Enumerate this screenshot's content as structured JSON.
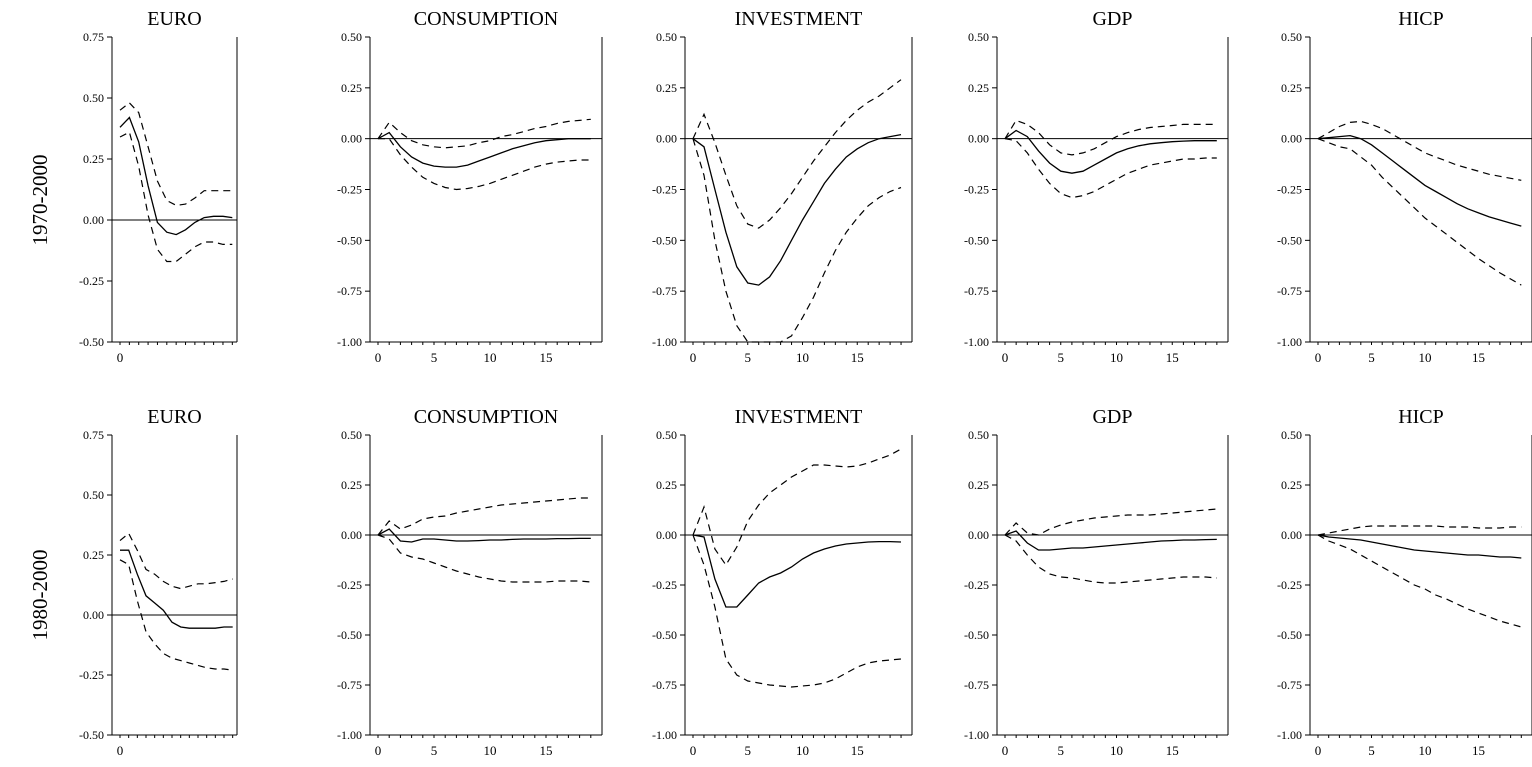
{
  "row_labels": [
    "1970-2000",
    "1980-2000"
  ],
  "chart_data": [
    {
      "type": "line",
      "title": "EURO",
      "ylim": [
        -0.5,
        0.75
      ],
      "yticks": [
        "0.75",
        "0.50",
        "0.25",
        "0.00",
        "-0.25",
        "-0.50"
      ],
      "xticks": [
        "0"
      ],
      "series": [
        {
          "role": "response",
          "values": [
            0.38,
            0.42,
            0.32,
            0.14,
            -0.01,
            -0.05,
            -0.06,
            -0.04,
            -0.01,
            0.01,
            0.015,
            0.015,
            0.01
          ]
        },
        {
          "role": "upper",
          "values": [
            0.45,
            0.48,
            0.44,
            0.3,
            0.16,
            0.08,
            0.06,
            0.065,
            0.09,
            0.12,
            0.12,
            0.12,
            0.12
          ]
        },
        {
          "role": "lower",
          "values": [
            0.34,
            0.36,
            0.22,
            0.02,
            -0.12,
            -0.17,
            -0.17,
            -0.14,
            -0.11,
            -0.09,
            -0.09,
            -0.1,
            -0.1
          ]
        }
      ]
    },
    {
      "type": "line",
      "title": "CONSUMPTION",
      "ylim": [
        -1.0,
        0.5
      ],
      "yticks": [
        "0.50",
        "0.25",
        "0.00",
        "-0.25",
        "-0.50",
        "-0.75",
        "-1.00"
      ],
      "xticks": [
        "0",
        "5",
        "10",
        "15"
      ],
      "series": [
        {
          "role": "response",
          "values": [
            0,
            0.03,
            -0.04,
            -0.09,
            -0.12,
            -0.135,
            -0.14,
            -0.14,
            -0.13,
            -0.11,
            -0.09,
            -0.07,
            -0.05,
            -0.035,
            -0.02,
            -0.01,
            -0.005,
            0,
            0,
            0
          ]
        },
        {
          "role": "upper",
          "values": [
            0,
            0.08,
            0.03,
            -0.01,
            -0.03,
            -0.04,
            -0.045,
            -0.04,
            -0.035,
            -0.02,
            -0.01,
            0.01,
            0.02,
            0.035,
            0.05,
            0.06,
            0.075,
            0.085,
            0.09,
            0.095
          ]
        },
        {
          "role": "lower",
          "values": [
            0,
            0,
            -0.08,
            -0.14,
            -0.19,
            -0.22,
            -0.24,
            -0.25,
            -0.245,
            -0.235,
            -0.22,
            -0.2,
            -0.18,
            -0.16,
            -0.14,
            -0.125,
            -0.115,
            -0.11,
            -0.105,
            -0.105
          ]
        }
      ]
    },
    {
      "type": "line",
      "title": "INVESTMENT",
      "ylim": [
        -1.0,
        0.5
      ],
      "yticks": [
        "0.50",
        "0.25",
        "0.00",
        "-0.25",
        "-0.50",
        "-0.75",
        "-1.00"
      ],
      "xticks": [
        "0",
        "5",
        "10",
        "15"
      ],
      "series": [
        {
          "role": "response",
          "values": [
            0,
            -0.04,
            -0.25,
            -0.46,
            -0.63,
            -0.71,
            -0.72,
            -0.68,
            -0.6,
            -0.5,
            -0.4,
            -0.31,
            -0.22,
            -0.15,
            -0.09,
            -0.05,
            -0.02,
            0,
            0.01,
            0.02
          ]
        },
        {
          "role": "upper",
          "values": [
            0,
            0.12,
            -0.02,
            -0.18,
            -0.33,
            -0.42,
            -0.44,
            -0.4,
            -0.34,
            -0.27,
            -0.19,
            -0.11,
            -0.04,
            0.03,
            0.09,
            0.14,
            0.18,
            0.21,
            0.25,
            0.29
          ]
        },
        {
          "role": "lower",
          "values": [
            0,
            -0.18,
            -0.5,
            -0.75,
            -0.92,
            -1.0,
            -1.0,
            -1.0,
            -1.0,
            -0.97,
            -0.88,
            -0.78,
            -0.66,
            -0.55,
            -0.46,
            -0.39,
            -0.33,
            -0.29,
            -0.26,
            -0.24
          ]
        }
      ]
    },
    {
      "type": "line",
      "title": "GDP",
      "ylim": [
        -1.0,
        0.5
      ],
      "yticks": [
        "0.50",
        "0.25",
        "0.00",
        "-0.25",
        "-0.50",
        "-0.75",
        "-1.00"
      ],
      "xticks": [
        "0",
        "5",
        "10",
        "15"
      ],
      "series": [
        {
          "role": "response",
          "values": [
            0,
            0.04,
            0.01,
            -0.06,
            -0.12,
            -0.16,
            -0.17,
            -0.16,
            -0.13,
            -0.1,
            -0.07,
            -0.05,
            -0.035,
            -0.025,
            -0.02,
            -0.015,
            -0.012,
            -0.01,
            -0.01,
            -0.01
          ]
        },
        {
          "role": "upper",
          "values": [
            0,
            0.09,
            0.07,
            0.03,
            -0.03,
            -0.07,
            -0.08,
            -0.07,
            -0.05,
            -0.02,
            0.01,
            0.03,
            0.045,
            0.055,
            0.06,
            0.065,
            0.07,
            0.07,
            0.07,
            0.07
          ]
        },
        {
          "role": "lower",
          "values": [
            0,
            -0.01,
            -0.07,
            -0.15,
            -0.22,
            -0.27,
            -0.29,
            -0.28,
            -0.26,
            -0.23,
            -0.2,
            -0.17,
            -0.15,
            -0.13,
            -0.12,
            -0.11,
            -0.1,
            -0.1,
            -0.095,
            -0.095
          ]
        }
      ]
    },
    {
      "type": "line",
      "title": "HICP",
      "ylim": [
        -1.0,
        0.5
      ],
      "yticks": [
        "0.50",
        "0.25",
        "0.00",
        "-0.25",
        "-0.50",
        "-0.75",
        "-1.00"
      ],
      "xticks": [
        "0",
        "5",
        "10",
        "15"
      ],
      "series": [
        {
          "role": "response",
          "values": [
            0,
            0.005,
            0.01,
            0.015,
            0.0,
            -0.03,
            -0.07,
            -0.11,
            -0.15,
            -0.19,
            -0.23,
            -0.26,
            -0.29,
            -0.32,
            -0.345,
            -0.365,
            -0.385,
            -0.4,
            -0.415,
            -0.43
          ]
        },
        {
          "role": "upper",
          "values": [
            0,
            0.03,
            0.06,
            0.08,
            0.085,
            0.07,
            0.05,
            0.02,
            -0.01,
            -0.04,
            -0.07,
            -0.09,
            -0.11,
            -0.13,
            -0.145,
            -0.16,
            -0.175,
            -0.185,
            -0.195,
            -0.205
          ]
        },
        {
          "role": "lower",
          "values": [
            0,
            -0.02,
            -0.04,
            -0.05,
            -0.09,
            -0.13,
            -0.19,
            -0.24,
            -0.29,
            -0.34,
            -0.39,
            -0.43,
            -0.47,
            -0.51,
            -0.55,
            -0.59,
            -0.625,
            -0.66,
            -0.69,
            -0.72
          ]
        }
      ]
    },
    {
      "type": "line",
      "title": "EURO",
      "ylim": [
        -0.5,
        0.75
      ],
      "yticks": [
        "0.75",
        "0.50",
        "0.25",
        "0.00",
        "-0.25",
        "-0.50"
      ],
      "xticks": [
        "0"
      ],
      "series": [
        {
          "role": "response",
          "values": [
            0.27,
            0.27,
            0.17,
            0.08,
            0.05,
            0.02,
            -0.03,
            -0.05,
            -0.055,
            -0.055,
            -0.055,
            -0.055,
            -0.05,
            -0.05
          ]
        },
        {
          "role": "upper",
          "values": [
            0.31,
            0.34,
            0.27,
            0.19,
            0.17,
            0.14,
            0.12,
            0.11,
            0.12,
            0.13,
            0.13,
            0.135,
            0.14,
            0.15
          ]
        },
        {
          "role": "lower",
          "values": [
            0.23,
            0.21,
            0.06,
            -0.07,
            -0.12,
            -0.16,
            -0.18,
            -0.19,
            -0.2,
            -0.21,
            -0.22,
            -0.225,
            -0.225,
            -0.23
          ]
        }
      ]
    },
    {
      "type": "line",
      "title": "CONSUMPTION",
      "ylim": [
        -1.0,
        0.5
      ],
      "yticks": [
        "0.50",
        "0.25",
        "0.00",
        "-0.25",
        "-0.50",
        "-0.75",
        "-1.00"
      ],
      "xticks": [
        "0",
        "5",
        "10",
        "15"
      ],
      "series": [
        {
          "role": "response",
          "values": [
            0,
            0.03,
            -0.03,
            -0.035,
            -0.02,
            -0.02,
            -0.025,
            -0.03,
            -0.03,
            -0.028,
            -0.025,
            -0.025,
            -0.022,
            -0.02,
            -0.02,
            -0.02,
            -0.018,
            -0.018,
            -0.017,
            -0.017
          ]
        },
        {
          "role": "upper",
          "values": [
            0,
            0.07,
            0.03,
            0.05,
            0.08,
            0.09,
            0.095,
            0.11,
            0.12,
            0.13,
            0.14,
            0.15,
            0.155,
            0.16,
            0.165,
            0.17,
            0.175,
            0.18,
            0.185,
            0.185
          ]
        },
        {
          "role": "lower",
          "values": [
            0,
            -0.02,
            -0.09,
            -0.11,
            -0.12,
            -0.14,
            -0.16,
            -0.18,
            -0.195,
            -0.21,
            -0.22,
            -0.23,
            -0.235,
            -0.235,
            -0.235,
            -0.235,
            -0.23,
            -0.23,
            -0.23,
            -0.235
          ]
        }
      ]
    },
    {
      "type": "line",
      "title": "INVESTMENT",
      "ylim": [
        -1.0,
        0.5
      ],
      "yticks": [
        "0.50",
        "0.25",
        "0.00",
        "-0.25",
        "-0.50",
        "-0.75",
        "-1.00"
      ],
      "xticks": [
        "0",
        "5",
        "10",
        "15"
      ],
      "series": [
        {
          "role": "response",
          "values": [
            0,
            -0.01,
            -0.22,
            -0.36,
            -0.36,
            -0.3,
            -0.24,
            -0.21,
            -0.19,
            -0.16,
            -0.12,
            -0.09,
            -0.07,
            -0.055,
            -0.045,
            -0.04,
            -0.035,
            -0.033,
            -0.033,
            -0.035
          ]
        },
        {
          "role": "upper",
          "values": [
            0,
            0.14,
            -0.07,
            -0.15,
            -0.06,
            0.07,
            0.15,
            0.21,
            0.25,
            0.29,
            0.32,
            0.35,
            0.35,
            0.345,
            0.34,
            0.345,
            0.36,
            0.38,
            0.4,
            0.43
          ]
        },
        {
          "role": "lower",
          "values": [
            0,
            -0.15,
            -0.36,
            -0.62,
            -0.7,
            -0.73,
            -0.74,
            -0.75,
            -0.755,
            -0.76,
            -0.755,
            -0.75,
            -0.74,
            -0.72,
            -0.69,
            -0.66,
            -0.64,
            -0.63,
            -0.625,
            -0.62
          ]
        }
      ]
    },
    {
      "type": "line",
      "title": "GDP",
      "ylim": [
        -1.0,
        0.5
      ],
      "yticks": [
        "0.50",
        "0.25",
        "0.00",
        "-0.25",
        "-0.50",
        "-0.75",
        "-1.00"
      ],
      "xticks": [
        "0",
        "5",
        "10",
        "15"
      ],
      "series": [
        {
          "role": "response",
          "values": [
            0,
            0.02,
            -0.04,
            -0.075,
            -0.075,
            -0.07,
            -0.065,
            -0.065,
            -0.06,
            -0.055,
            -0.05,
            -0.045,
            -0.04,
            -0.035,
            -0.03,
            -0.028,
            -0.025,
            -0.025,
            -0.023,
            -0.022
          ]
        },
        {
          "role": "upper",
          "values": [
            0,
            0.06,
            0.01,
            0,
            0.03,
            0.05,
            0.065,
            0.075,
            0.085,
            0.09,
            0.095,
            0.1,
            0.1,
            0.1,
            0.105,
            0.11,
            0.115,
            0.12,
            0.125,
            0.13
          ]
        },
        {
          "role": "lower",
          "values": [
            0,
            -0.03,
            -0.1,
            -0.16,
            -0.195,
            -0.21,
            -0.215,
            -0.225,
            -0.235,
            -0.24,
            -0.24,
            -0.235,
            -0.23,
            -0.225,
            -0.22,
            -0.215,
            -0.21,
            -0.21,
            -0.21,
            -0.215
          ]
        }
      ]
    },
    {
      "type": "line",
      "title": "HICP",
      "ylim": [
        -1.0,
        0.5
      ],
      "yticks": [
        "0.50",
        "0.25",
        "0.00",
        "-0.25",
        "-0.50",
        "-0.75",
        "-1.00"
      ],
      "xticks": [
        "0",
        "5",
        "10",
        "15"
      ],
      "series": [
        {
          "role": "response",
          "values": [
            0,
            -0.01,
            -0.015,
            -0.02,
            -0.025,
            -0.035,
            -0.045,
            -0.055,
            -0.065,
            -0.075,
            -0.08,
            -0.085,
            -0.09,
            -0.095,
            -0.1,
            -0.1,
            -0.105,
            -0.11,
            -0.11,
            -0.115
          ]
        },
        {
          "role": "upper",
          "values": [
            0,
            0.01,
            0.02,
            0.03,
            0.04,
            0.045,
            0.045,
            0.045,
            0.045,
            0.045,
            0.045,
            0.045,
            0.04,
            0.04,
            0.04,
            0.035,
            0.035,
            0.035,
            0.04,
            0.04
          ]
        },
        {
          "role": "lower",
          "values": [
            0,
            -0.03,
            -0.05,
            -0.07,
            -0.1,
            -0.13,
            -0.16,
            -0.19,
            -0.22,
            -0.25,
            -0.27,
            -0.3,
            -0.32,
            -0.345,
            -0.37,
            -0.39,
            -0.41,
            -0.43,
            -0.445,
            -0.46
          ]
        }
      ]
    }
  ]
}
